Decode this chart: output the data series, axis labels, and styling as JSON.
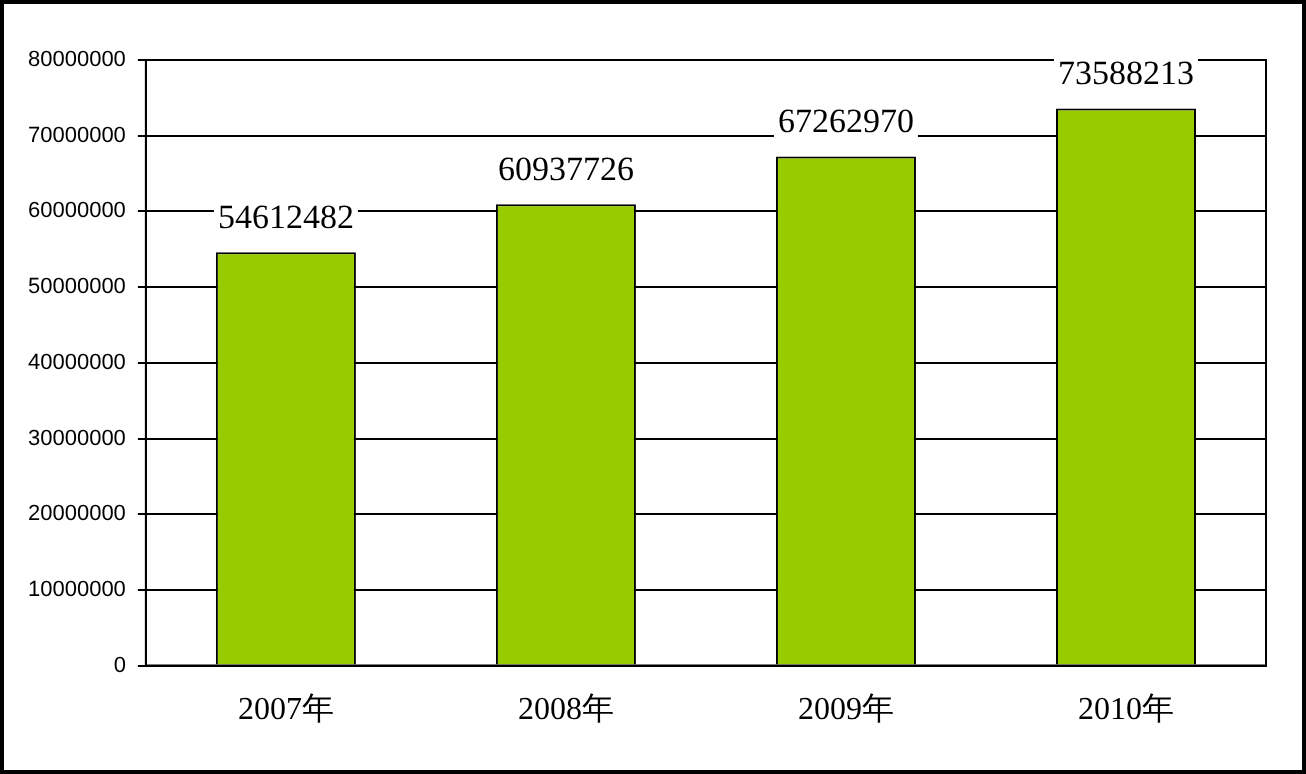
{
  "chart_data": {
    "type": "bar",
    "categories": [
      "2007年",
      "2008年",
      "2009年",
      "2010年"
    ],
    "values": [
      54612482,
      60937726,
      67262970,
      73588213
    ],
    "color": "#99cc00",
    "ylim": [
      0,
      80000000
    ],
    "yticks": [
      0,
      10000000,
      20000000,
      30000000,
      40000000,
      50000000,
      60000000,
      70000000,
      80000000
    ],
    "grid": "y",
    "legend": false,
    "data_labels": true
  }
}
